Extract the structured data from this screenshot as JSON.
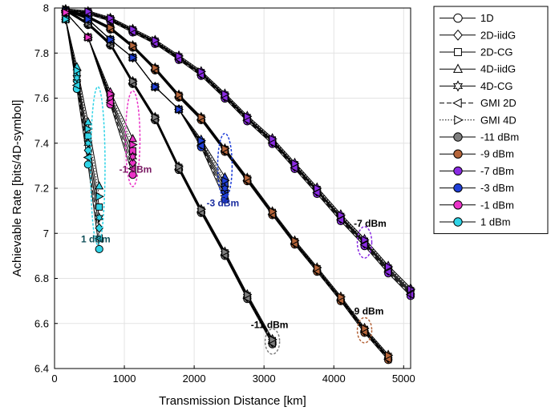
{
  "chart_data": {
    "type": "line",
    "xlabel": "Transmission Distance [km]",
    "ylabel": "Achievable Rate [bits/4D-symbol]",
    "xlim": [
      0,
      5100
    ],
    "ylim": [
      6.4,
      8.0
    ],
    "x_ticks": [
      "0",
      "1000",
      "2000",
      "3000",
      "4000",
      "5000"
    ],
    "y_ticks": [
      "6.4",
      "6.6",
      "6.8",
      "7",
      "7.2",
      "7.4",
      "7.6",
      "7.8",
      "8"
    ],
    "grid": true,
    "legend_position": "outside-top-right",
    "legend": [
      {
        "label": "1D",
        "marker": "circle",
        "fill": "#ffffff",
        "dash": "solid"
      },
      {
        "label": "2D-iidG",
        "marker": "diamond",
        "fill": "#ffffff",
        "dash": "solid"
      },
      {
        "label": "2D-CG",
        "marker": "square",
        "fill": "#ffffff",
        "dash": "solid"
      },
      {
        "label": "4D-iidG",
        "marker": "triangle-up",
        "fill": "#ffffff",
        "dash": "solid"
      },
      {
        "label": "4D-CG",
        "marker": "hexagram",
        "fill": "#ffffff",
        "dash": "solid"
      },
      {
        "label": "GMI 2D",
        "marker": "triangle-left",
        "fill": "#ffffff",
        "dash": "dashed"
      },
      {
        "label": "GMI 4D",
        "marker": "triangle-right",
        "fill": "#ffffff",
        "dash": "dotted"
      },
      {
        "label": "-11 dBm",
        "marker": "circle",
        "fill": "#7f7f7f",
        "dash": "solid"
      },
      {
        "label": "-9 dBm",
        "marker": "circle",
        "fill": "#b5653a",
        "dash": "solid"
      },
      {
        "label": "-7 dBm",
        "marker": "circle",
        "fill": "#8a2be2",
        "dash": "solid"
      },
      {
        "label": "-3 dBm",
        "marker": "circle",
        "fill": "#1f3fd8",
        "dash": "solid"
      },
      {
        "label": "-1 dBm",
        "marker": "circle",
        "fill": "#ea33c8",
        "dash": "solid"
      },
      {
        "label": "1 dBm",
        "marker": "circle",
        "fill": "#2fd3e6",
        "dash": "solid"
      }
    ],
    "series": [
      {
        "name": "-11 dBm",
        "color": "#7f7f7f",
        "x": [
          160,
          480,
          800,
          1120,
          1440,
          1780,
          2100,
          2440,
          2760,
          3120
        ],
        "y": [
          7.99,
          7.93,
          7.84,
          7.67,
          7.51,
          7.29,
          7.1,
          6.91,
          6.72,
          6.52
        ],
        "y_spread": 0.012
      },
      {
        "name": "-9 dBm",
        "color": "#b5653a",
        "x": [
          160,
          480,
          800,
          1120,
          1440,
          1780,
          2100,
          2440,
          2760,
          3120,
          3440,
          3760,
          4100,
          4440,
          4780
        ],
        "y": [
          7.99,
          7.96,
          7.91,
          7.83,
          7.73,
          7.61,
          7.51,
          7.37,
          7.24,
          7.09,
          6.96,
          6.84,
          6.71,
          6.57,
          6.45
        ],
        "y_spread": 0.012
      },
      {
        "name": "-7 dBm",
        "color": "#8a2be2",
        "x": [
          160,
          480,
          800,
          1120,
          1440,
          1780,
          2100,
          2440,
          2760,
          3120,
          3440,
          3760,
          4100,
          4440,
          4780,
          5100
        ],
        "y": [
          7.99,
          7.98,
          7.95,
          7.9,
          7.85,
          7.78,
          7.71,
          7.61,
          7.51,
          7.41,
          7.3,
          7.19,
          7.07,
          6.96,
          6.84,
          6.74
        ],
        "y_spread": 0.018
      },
      {
        "name": "-3 dBm",
        "color": "#1f3fd8",
        "x": [
          160,
          480,
          800,
          1120,
          1440,
          1780,
          2100,
          2440
        ],
        "y": [
          7.99,
          7.95,
          7.86,
          7.78,
          7.65,
          7.55,
          7.4,
          7.2
        ],
        "y_spread": 0.05,
        "spread_from": 6
      },
      {
        "name": "-1 dBm",
        "color": "#ea33c8",
        "x": [
          160,
          480,
          800,
          1120
        ],
        "y": [
          7.98,
          7.87,
          7.6,
          7.34
        ],
        "y_spread": 0.08,
        "spread_from": 2
      },
      {
        "name": "1 dBm",
        "color": "#2fd3e6",
        "x": [
          160,
          320,
          480,
          640
        ],
        "y": [
          7.95,
          7.69,
          7.4,
          7.07
        ],
        "y_spread": 0.14,
        "spread_from": 1
      }
    ],
    "annotations": [
      {
        "text": "-11 dBm",
        "x": 3120,
        "y": 6.52,
        "color": "#7f7f7f",
        "label_x": 3080,
        "label_y": 6.58,
        "label_color": "#000000"
      },
      {
        "text": "-9 dBm",
        "x": 4440,
        "y": 6.57,
        "color": "#b5653a",
        "label_x": 4480,
        "label_y": 6.64,
        "label_color": "#000000"
      },
      {
        "text": "-7 dBm",
        "x": 4440,
        "y": 6.96,
        "color": "#8a2be2",
        "label_x": 4520,
        "label_y": 7.03,
        "label_color": "#000000"
      },
      {
        "text": "-3 dBm",
        "x": 2440,
        "y": 7.3,
        "color": "#1f3fd8",
        "label_x": 2410,
        "label_y": 7.12,
        "label_color": "#1c2ea0"
      },
      {
        "text": "-1 dBm",
        "x": 1120,
        "y": 7.42,
        "color": "#ea33c8",
        "label_x": 1160,
        "label_y": 7.27,
        "label_color": "#7a1a63"
      },
      {
        "text": "1 dBm",
        "x": 620,
        "y": 7.3,
        "color": "#2fd3e6",
        "label_x": 590,
        "label_y": 6.96,
        "label_color": "#0f4f58"
      }
    ]
  }
}
